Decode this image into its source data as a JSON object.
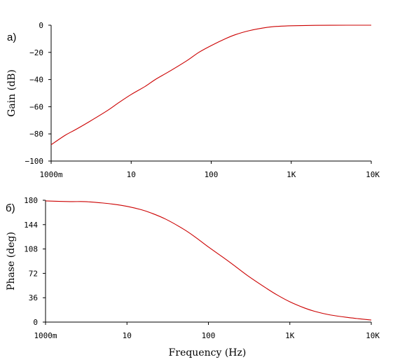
{
  "chart_data": [
    {
      "type": "line",
      "panel_label": "а)",
      "xscale": "log",
      "xlim": [
        1,
        10000
      ],
      "x_ticks": [
        1,
        10,
        100,
        1000,
        10000
      ],
      "x_tick_labels": [
        "1000m",
        "10",
        "100",
        "1K",
        "10K"
      ],
      "ylabel": "Gain (dB)",
      "ylim": [
        -100,
        0
      ],
      "y_ticks": [
        0,
        -20,
        -40,
        -60,
        -80,
        -100
      ],
      "y_tick_labels": [
        "0",
        "−20",
        "−40",
        "−60",
        "−80",
        "−100"
      ],
      "grid": false,
      "color": "#cc0000",
      "series": [
        {
          "x": [
            1,
            1.5,
            2,
            3,
            5,
            7,
            10,
            15,
            20,
            30,
            50,
            70,
            100,
            150,
            200,
            300,
            500,
            700,
            1000,
            2000,
            5000,
            10000
          ],
          "values": [
            -88,
            -81,
            -77,
            -71,
            -63,
            -57,
            -51,
            -45,
            -40,
            -34,
            -26,
            -20,
            -15,
            -10,
            -7,
            -4,
            -1.6,
            -0.8,
            -0.4,
            -0.1,
            0,
            0
          ]
        }
      ]
    },
    {
      "type": "line",
      "panel_label": "б)",
      "xscale": "log",
      "xlim": [
        1,
        10000
      ],
      "x_ticks": [
        1,
        10,
        100,
        1000,
        10000
      ],
      "x_tick_labels": [
        "1000m",
        "10",
        "100",
        "1K",
        "10K"
      ],
      "xlabel": "Frequency (Hz)",
      "ylabel": "Phase (deg)",
      "ylim": [
        0,
        180
      ],
      "y_ticks": [
        180,
        144,
        108,
        72,
        36,
        0
      ],
      "y_tick_labels": [
        "180",
        "144",
        "108",
        "72",
        "36",
        "0"
      ],
      "grid": false,
      "color": "#cc0000",
      "series": [
        {
          "x": [
            1,
            2,
            3,
            5,
            7,
            10,
            15,
            20,
            30,
            50,
            70,
            100,
            150,
            200,
            300,
            500,
            700,
            1000,
            1500,
            2000,
            3000,
            5000,
            7000,
            10000
          ],
          "values": [
            179,
            178,
            178,
            176,
            174,
            171,
            166,
            161,
            152,
            137,
            125,
            111,
            96,
            85,
            69,
            51,
            40,
            30,
            21,
            16,
            11,
            7,
            5,
            3
          ]
        }
      ]
    }
  ]
}
